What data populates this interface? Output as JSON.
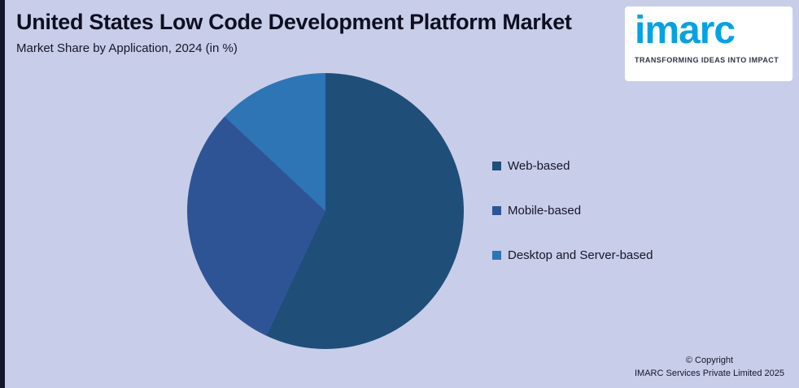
{
  "page": {
    "title": "United States Low Code Development Platform Market",
    "subtitle": "Market Share by Application, 2024 (in %)"
  },
  "logo": {
    "brand": "imarc",
    "tagline": "TRANSFORMING IDEAS INTO IMPACT",
    "brand_color": "#00a3e3"
  },
  "chart_data": {
    "type": "pie",
    "title": "United States Low Code Development Platform Market",
    "subtitle": "Market Share by Application, 2024 (in %)",
    "categories": [
      "Web-based",
      "Mobile-based",
      "Desktop and Server-based"
    ],
    "values": [
      57,
      30,
      13
    ],
    "unit": "%",
    "colors": [
      "#1f4e79",
      "#2f5496",
      "#2e75b6"
    ],
    "start_angle_deg": 0,
    "direction": "clockwise",
    "legend_position": "right",
    "data_labels_visible": false
  },
  "footer": {
    "copyright_line1": "© Copyright",
    "copyright_line2": "IMARC Services Private Limited 2025"
  }
}
